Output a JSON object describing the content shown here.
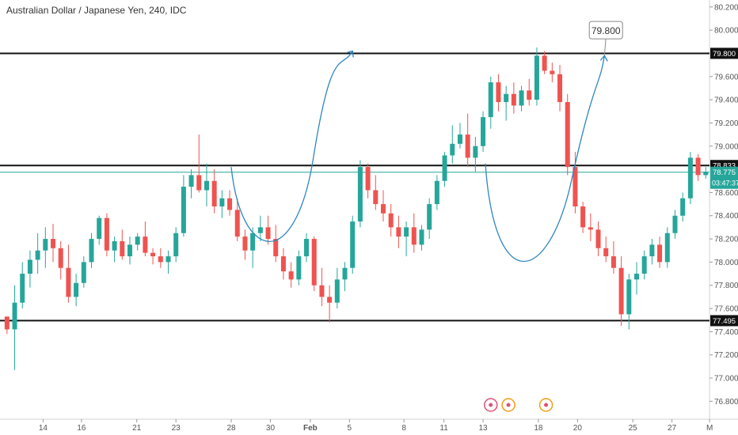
{
  "chart_data": {
    "type": "candlestick",
    "title": "Australian Dollar / Japanese Yen, 240, IDC",
    "ylim": [
      76.7,
      80.26
    ],
    "y_ticks": [
      "76.800",
      "77.000",
      "77.200",
      "77.400",
      "77.600",
      "77.800",
      "78.000",
      "78.200",
      "78.400",
      "78.600",
      "79.000",
      "79.200",
      "79.400",
      "79.600",
      "80.000",
      "80.200"
    ],
    "y_tick_values": [
      76.8,
      77.0,
      77.2,
      77.4,
      77.6,
      77.8,
      78.0,
      78.2,
      78.4,
      78.6,
      79.0,
      79.2,
      79.4,
      79.6,
      80.0,
      80.2
    ],
    "x_ticks": [
      "14",
      "16",
      "21",
      "23",
      "28",
      "30",
      "Feb",
      "5",
      "8",
      "11",
      "13",
      "18",
      "20",
      "25",
      "27",
      "M"
    ],
    "x_tick_bars": [
      5.2,
      10.2,
      17.4,
      22.5,
      29.7,
      34.8,
      40.0,
      45.1,
      52.2,
      57.4,
      62.5,
      69.7,
      74.8,
      82.0,
      87.1,
      92.0
    ],
    "bars_visible": 92.4,
    "horizontal_levels": [
      {
        "price": 79.8,
        "label": "79.800",
        "color": "#111111"
      },
      {
        "price": 78.833,
        "label": "78.833",
        "color": "#111111"
      },
      {
        "price": 77.495,
        "label": "77.495",
        "color": "#111111"
      }
    ],
    "current_price": {
      "price": 78.775,
      "label": "78.775",
      "countdown": "03:47:37",
      "color": "#26a69a"
    },
    "target_callout": {
      "label": "79.800",
      "bar": 78.5,
      "price": 80.0
    },
    "projection_color": "#2e86c1",
    "up_color": "#26a69a",
    "down_color": "#ef5350",
    "candles": [
      [
        77.53,
        77.53,
        77.38,
        77.42
      ],
      [
        77.42,
        77.8,
        77.07,
        77.65
      ],
      [
        77.65,
        78.0,
        77.6,
        77.9
      ],
      [
        77.9,
        78.1,
        77.78,
        78.02
      ],
      [
        78.02,
        78.25,
        77.9,
        78.1
      ],
      [
        78.1,
        78.3,
        77.95,
        78.2
      ],
      [
        78.2,
        78.33,
        78.0,
        78.12
      ],
      [
        78.12,
        78.18,
        77.85,
        77.95
      ],
      [
        77.95,
        78.15,
        77.65,
        77.7
      ],
      [
        77.7,
        77.9,
        77.62,
        77.82
      ],
      [
        77.82,
        78.05,
        77.78,
        78.0
      ],
      [
        78.0,
        78.25,
        77.95,
        78.2
      ],
      [
        78.2,
        78.4,
        78.15,
        78.38
      ],
      [
        78.38,
        78.42,
        78.05,
        78.1
      ],
      [
        78.1,
        78.22,
        78.0,
        78.18
      ],
      [
        78.18,
        78.28,
        78.02,
        78.05
      ],
      [
        78.05,
        78.22,
        77.98,
        78.15
      ],
      [
        78.15,
        78.25,
        78.1,
        78.22
      ],
      [
        78.22,
        78.35,
        78.05,
        78.08
      ],
      [
        78.08,
        78.12,
        77.98,
        78.05
      ],
      [
        78.05,
        78.12,
        77.95,
        78.0
      ],
      [
        78.0,
        78.1,
        77.9,
        78.05
      ],
      [
        78.05,
        78.3,
        78.0,
        78.25
      ],
      [
        78.25,
        78.75,
        78.22,
        78.65
      ],
      [
        78.65,
        78.8,
        78.55,
        78.75
      ],
      [
        78.75,
        79.1,
        78.6,
        78.62
      ],
      [
        78.62,
        78.85,
        78.48,
        78.7
      ],
      [
        78.7,
        78.8,
        78.42,
        78.48
      ],
      [
        78.48,
        78.62,
        78.38,
        78.55
      ],
      [
        78.55,
        78.62,
        78.4,
        78.45
      ],
      [
        78.45,
        78.55,
        78.18,
        78.22
      ],
      [
        78.22,
        78.28,
        78.02,
        78.1
      ],
      [
        78.1,
        78.3,
        77.95,
        78.25
      ],
      [
        78.25,
        78.4,
        78.18,
        78.3
      ],
      [
        78.3,
        78.4,
        78.15,
        78.2
      ],
      [
        78.2,
        78.32,
        78.0,
        78.05
      ],
      [
        78.05,
        78.12,
        77.85,
        77.92
      ],
      [
        77.92,
        78.0,
        77.78,
        77.85
      ],
      [
        77.85,
        78.1,
        77.8,
        78.05
      ],
      [
        78.05,
        78.25,
        78.0,
        78.2
      ],
      [
        78.2,
        78.22,
        77.75,
        77.8
      ],
      [
        77.8,
        77.95,
        77.62,
        77.7
      ],
      [
        77.7,
        77.8,
        77.48,
        77.65
      ],
      [
        77.65,
        77.95,
        77.6,
        77.85
      ],
      [
        77.85,
        78.0,
        77.75,
        77.95
      ],
      [
        77.95,
        78.4,
        77.9,
        78.35
      ],
      [
        78.35,
        78.88,
        78.3,
        78.82
      ],
      [
        78.82,
        78.85,
        78.55,
        78.62
      ],
      [
        78.62,
        78.75,
        78.45,
        78.5
      ],
      [
        78.5,
        78.62,
        78.35,
        78.42
      ],
      [
        78.42,
        78.5,
        78.22,
        78.3
      ],
      [
        78.3,
        78.4,
        78.12,
        78.22
      ],
      [
        78.22,
        78.35,
        78.05,
        78.3
      ],
      [
        78.3,
        78.42,
        78.08,
        78.15
      ],
      [
        78.15,
        78.32,
        78.1,
        78.28
      ],
      [
        78.28,
        78.55,
        78.2,
        78.5
      ],
      [
        78.5,
        78.75,
        78.45,
        78.7
      ],
      [
        78.7,
        78.95,
        78.65,
        78.92
      ],
      [
        78.92,
        79.18,
        78.85,
        79.02
      ],
      [
        79.02,
        79.2,
        78.98,
        79.1
      ],
      [
        79.1,
        79.28,
        78.82,
        78.9
      ],
      [
        78.9,
        79.08,
        78.78,
        79.0
      ],
      [
        79.0,
        79.3,
        78.95,
        79.25
      ],
      [
        79.25,
        79.6,
        79.15,
        79.55
      ],
      [
        79.55,
        79.62,
        79.3,
        79.38
      ],
      [
        79.38,
        79.52,
        79.22,
        79.45
      ],
      [
        79.45,
        79.55,
        79.28,
        79.35
      ],
      [
        79.35,
        79.52,
        79.3,
        79.48
      ],
      [
        79.48,
        79.58,
        79.35,
        79.4
      ],
      [
        79.4,
        79.85,
        79.35,
        79.78
      ],
      [
        79.78,
        79.82,
        79.62,
        79.65
      ],
      [
        79.65,
        79.72,
        79.55,
        79.62
      ],
      [
        79.62,
        79.7,
        79.3,
        79.38
      ],
      [
        79.38,
        79.45,
        78.75,
        78.82
      ],
      [
        78.82,
        78.95,
        78.42,
        78.48
      ],
      [
        78.48,
        78.52,
        78.25,
        78.3
      ],
      [
        78.3,
        78.42,
        78.18,
        78.28
      ],
      [
        78.28,
        78.35,
        78.05,
        78.12
      ],
      [
        78.12,
        78.22,
        78.0,
        78.05
      ],
      [
        78.05,
        78.18,
        77.9,
        77.95
      ],
      [
        77.95,
        78.05,
        77.45,
        77.55
      ],
      [
        77.55,
        77.9,
        77.42,
        77.85
      ],
      [
        77.85,
        78.0,
        77.72,
        77.9
      ],
      [
        77.9,
        78.1,
        77.85,
        78.05
      ],
      [
        78.05,
        78.2,
        77.98,
        78.15
      ],
      [
        78.15,
        78.22,
        77.95,
        78.0
      ],
      [
        78.0,
        78.3,
        77.95,
        78.25
      ],
      [
        78.25,
        78.45,
        78.2,
        78.4
      ],
      [
        78.4,
        78.6,
        78.35,
        78.55
      ],
      [
        78.55,
        78.95,
        78.5,
        78.9
      ],
      [
        78.9,
        78.93,
        78.7,
        78.75
      ],
      [
        78.75,
        78.82,
        78.72,
        78.78
      ]
    ]
  }
}
